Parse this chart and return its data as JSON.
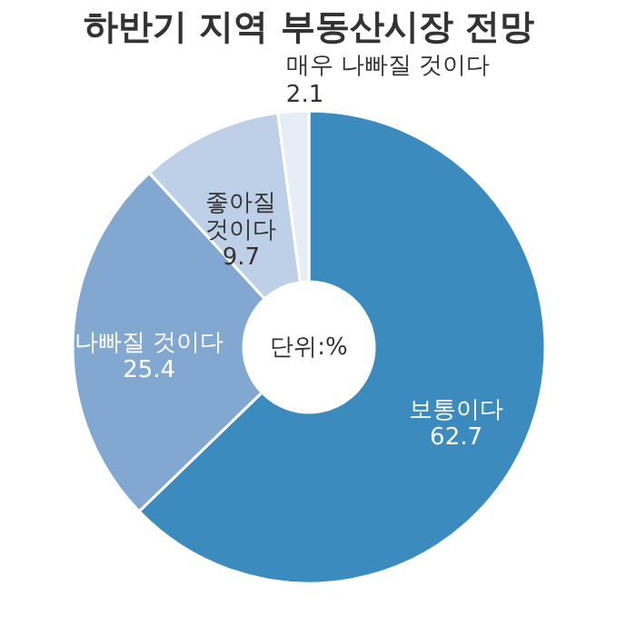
{
  "chart_data": {
    "type": "donut",
    "title": "하반기 지역 부동산시장 전망",
    "categories": [
      "보통이다",
      "나빠질 것이다",
      "좋아질 것이다",
      "매우 나빠질 것이다"
    ],
    "values": [
      62.7,
      25.4,
      9.7,
      2.1
    ],
    "colors": [
      "#3b8bbf",
      "#82a8d2",
      "#bdd0e8",
      "#e6edf6"
    ],
    "data_labels": true,
    "annotations": [
      "단위:%"
    ],
    "legend": false
  }
}
